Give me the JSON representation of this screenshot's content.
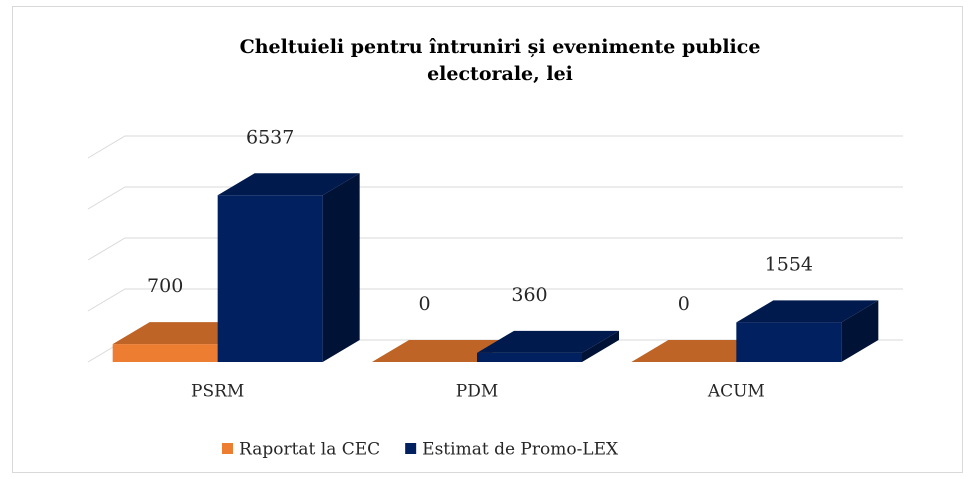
{
  "chart_data": {
    "type": "bar3d",
    "title": "Cheltuieli pentru întruniri și evenimente publice electorale, lei",
    "categories": [
      "PSRM",
      "PDM",
      "ACUM"
    ],
    "series": [
      {
        "name": "Raportat la CEC",
        "color": "#ed7d31",
        "values": [
          700,
          0,
          0
        ]
      },
      {
        "name": "Estimat de Promo-LEX",
        "color": "#002060",
        "values": [
          6537,
          360,
          1554
        ]
      }
    ],
    "ylim": [
      0,
      8000
    ],
    "yticks": [
      0,
      2000,
      4000,
      6000,
      8000
    ],
    "grid": true,
    "legend": "bottom"
  }
}
